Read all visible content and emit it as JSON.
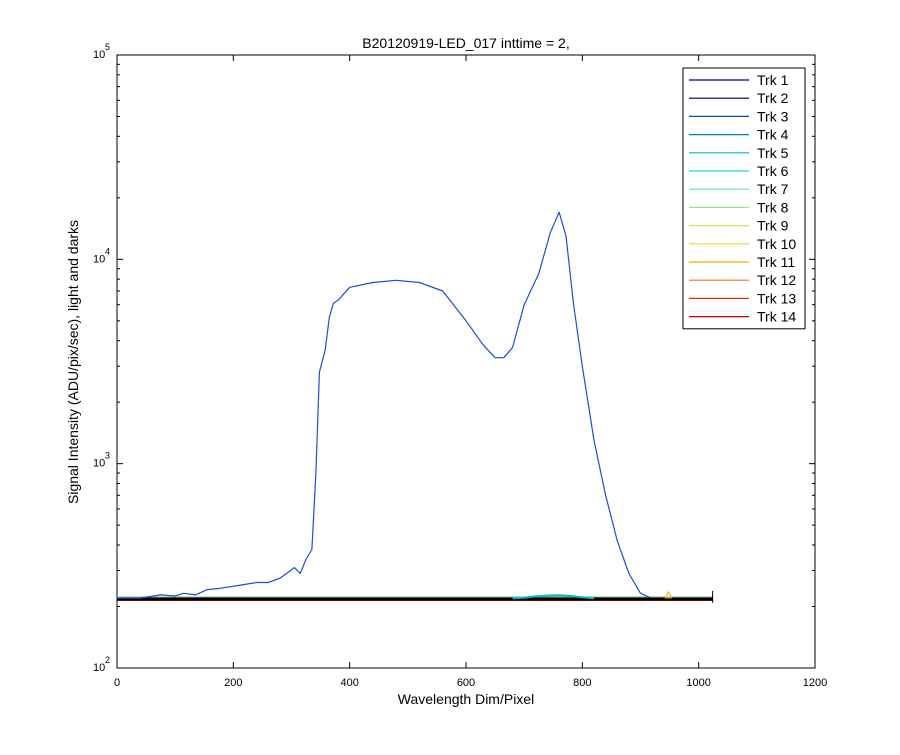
{
  "chart_data": {
    "type": "line",
    "title": "B20120919-LED_017 inttime = 2,",
    "xlabel": "Wavelength Dim/Pixel",
    "ylabel": "Signal Intensity (ADU/pix/sec), light and darks",
    "xlim": [
      0,
      1200
    ],
    "ylim": [
      100,
      100000
    ],
    "yscale": "log",
    "x_ticks": [
      "0",
      "200",
      "400",
      "600",
      "800",
      "1000",
      "1200"
    ],
    "y_ticks": [
      {
        "base": "10",
        "exp": "2",
        "value": 100
      },
      {
        "base": "10",
        "exp": "3",
        "value": 1000
      },
      {
        "base": "10",
        "exp": "4",
        "value": 10000
      },
      {
        "base": "10",
        "exp": "5",
        "value": 100000
      }
    ],
    "grid": false,
    "legend_position": "top-right",
    "series": [
      {
        "name": "Trk 1",
        "color": "#000090"
      },
      {
        "name": "Trk 2",
        "color": "#000030"
      },
      {
        "name": "Trk 3",
        "color": "#0050A8"
      },
      {
        "name": "Trk 4",
        "color": "#0080B0"
      },
      {
        "name": "Trk 5",
        "color": "#00B8C8"
      },
      {
        "name": "Trk 6",
        "color": "#20D8D8"
      },
      {
        "name": "Trk 7",
        "color": "#60E0D0"
      },
      {
        "name": "Trk 8",
        "color": "#90E890"
      },
      {
        "name": "Trk 9",
        "color": "#C8E860"
      },
      {
        "name": "Trk 10",
        "color": "#E8E020"
      },
      {
        "name": "Trk 11",
        "color": "#F0B000"
      },
      {
        "name": "Trk 12",
        "color": "#F07020"
      },
      {
        "name": "Trk 13",
        "color": "#E03010"
      },
      {
        "name": "Trk 14",
        "color": "#C00000"
      }
    ],
    "signal_curve": {
      "color": "#1F4FD0",
      "x": [
        0,
        40,
        75,
        100,
        115,
        135,
        155,
        175,
        195,
        215,
        240,
        260,
        280,
        295,
        305,
        315,
        325,
        335,
        342,
        348,
        352,
        358,
        365,
        372,
        380,
        400,
        440,
        480,
        520,
        560,
        600,
        630,
        650,
        665,
        680,
        700,
        725,
        745,
        760,
        772,
        785,
        800,
        820,
        840,
        860,
        880,
        900,
        915
      ],
      "y": [
        220,
        220,
        228,
        225,
        232,
        228,
        242,
        245,
        250,
        255,
        262,
        262,
        275,
        295,
        310,
        290,
        340,
        380,
        900,
        2800,
        3100,
        3600,
        5200,
        6100,
        6300,
        7300,
        7700,
        7900,
        7700,
        7000,
        5000,
        3800,
        3300,
        3300,
        3700,
        6000,
        8500,
        13500,
        17000,
        13000,
        6000,
        3000,
        1300,
        700,
        420,
        290,
        232,
        222
      ]
    },
    "dark_level": {
      "value": 218,
      "x_start": 0,
      "x_end": 1024
    },
    "bump": {
      "x": [
        680,
        700,
        720,
        740,
        760,
        780,
        800,
        820
      ],
      "y": [
        219,
        221,
        224,
        226,
        227,
        225,
        222,
        219
      ],
      "color": "#00B8C8"
    },
    "marker": {
      "x": 948,
      "y": 228,
      "color": "#F0B000"
    }
  }
}
